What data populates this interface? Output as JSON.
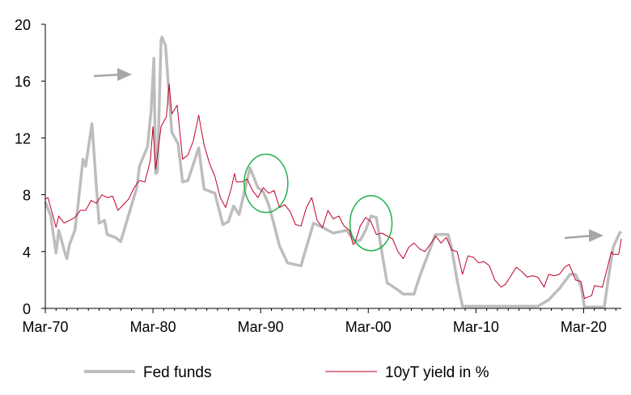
{
  "chart_data": {
    "type": "line",
    "title": "",
    "xlabel": "",
    "ylabel": "",
    "ylim": [
      0,
      20
    ],
    "yticks": [
      "0",
      "4",
      "8",
      "12",
      "16",
      "20"
    ],
    "xlim": [
      "Mar-70",
      "Sep-23"
    ],
    "xticks": [
      "Mar-70",
      "Mar-80",
      "Mar-90",
      "Mar-00",
      "Mar-10",
      "Mar-20"
    ],
    "grid": false,
    "legend_position": "bottom",
    "series": [
      {
        "name": "Fed funds",
        "color": "#bdbdbd",
        "points": [
          [
            "Mar-70",
            7.5
          ],
          [
            "Sep-70",
            6.5
          ],
          [
            "Mar-71",
            3.9
          ],
          [
            "Jun-71",
            5.5
          ],
          [
            "Dec-71",
            4.1
          ],
          [
            "Mar-72",
            3.5
          ],
          [
            "Jun-72",
            4.5
          ],
          [
            "Dec-72",
            5.5
          ],
          [
            "Mar-73",
            7.0
          ],
          [
            "Sep-73",
            10.5
          ],
          [
            "Dec-73",
            10.0
          ],
          [
            "Jul-74",
            13.0
          ],
          [
            "Dec-74",
            8.5
          ],
          [
            "Mar-75",
            6.0
          ],
          [
            "Sep-75",
            6.2
          ],
          [
            "Dec-75",
            5.2
          ],
          [
            "Sep-76",
            5.0
          ],
          [
            "Mar-77",
            4.7
          ],
          [
            "Dec-77",
            6.6
          ],
          [
            "Sep-78",
            8.5
          ],
          [
            "Dec-78",
            10.0
          ],
          [
            "Sep-79",
            11.4
          ],
          [
            "Jan-80",
            14.0
          ],
          [
            "Apr-80",
            17.6
          ],
          [
            "Jun-80",
            9.5
          ],
          [
            "Aug-80",
            9.6
          ],
          [
            "Dec-80",
            18.9
          ],
          [
            "Jan-81",
            19.1
          ],
          [
            "May-81",
            18.5
          ],
          [
            "Dec-81",
            12.4
          ],
          [
            "Jul-82",
            11.6
          ],
          [
            "Dec-82",
            8.9
          ],
          [
            "Jun-83",
            9.0
          ],
          [
            "Jun-84",
            11.3
          ],
          [
            "Dec-84",
            8.4
          ],
          [
            "Dec-85",
            8.1
          ],
          [
            "Sep-86",
            5.9
          ],
          [
            "Mar-87",
            6.1
          ],
          [
            "Sep-87",
            7.2
          ],
          [
            "Mar-88",
            6.6
          ],
          [
            "Mar-89",
            9.9
          ],
          [
            "Dec-89",
            8.5
          ],
          [
            "Jun-90",
            8.2
          ],
          [
            "Dec-90",
            7.3
          ],
          [
            "Jun-91",
            5.9
          ],
          [
            "Dec-91",
            4.4
          ],
          [
            "Sep-92",
            3.2
          ],
          [
            "Dec-93",
            3.0
          ],
          [
            "Jun-94",
            4.3
          ],
          [
            "Feb-95",
            6.0
          ],
          [
            "Sep-95",
            5.8
          ],
          [
            "Dec-96",
            5.3
          ],
          [
            "Mar-98",
            5.5
          ],
          [
            "Dec-98",
            4.7
          ],
          [
            "Jun-99",
            4.8
          ],
          [
            "Dec-99",
            5.5
          ],
          [
            "Jun-00",
            6.5
          ],
          [
            "Dec-00",
            6.4
          ],
          [
            "Jun-01",
            4.0
          ],
          [
            "Dec-01",
            1.8
          ],
          [
            "Dec-02",
            1.3
          ],
          [
            "Jun-03",
            1.0
          ],
          [
            "Jun-04",
            1.0
          ],
          [
            "Dec-04",
            2.2
          ],
          [
            "Dec-05",
            4.2
          ],
          [
            "Jun-06",
            5.2
          ],
          [
            "Aug-07",
            5.2
          ],
          [
            "Dec-07",
            4.2
          ],
          [
            "Jun-08",
            2.0
          ],
          [
            "Dec-08",
            0.15
          ],
          [
            "Dec-15",
            0.15
          ],
          [
            "Dec-16",
            0.6
          ],
          [
            "Dec-17",
            1.4
          ],
          [
            "Dec-18",
            2.4
          ],
          [
            "Jun-19",
            2.4
          ],
          [
            "Dec-19",
            1.6
          ],
          [
            "Apr-20",
            0.1
          ],
          [
            "Feb-22",
            0.1
          ],
          [
            "Jul-22",
            2.3
          ],
          [
            "Dec-22",
            4.3
          ],
          [
            "Jul-23",
            5.3
          ],
          [
            "Sep-23",
            5.4
          ]
        ]
      },
      {
        "name": "10yT yield in %",
        "color": "#c00028",
        "points": [
          [
            "Mar-70",
            7.7
          ],
          [
            "Jun-70",
            7.8
          ],
          [
            "Dec-70",
            6.4
          ],
          [
            "Mar-71",
            5.7
          ],
          [
            "Jun-71",
            6.5
          ],
          [
            "Dec-71",
            6.0
          ],
          [
            "Jun-72",
            6.2
          ],
          [
            "Dec-72",
            6.4
          ],
          [
            "Jun-73",
            6.9
          ],
          [
            "Dec-73",
            6.9
          ],
          [
            "Jun-74",
            7.6
          ],
          [
            "Dec-74",
            7.4
          ],
          [
            "Jun-75",
            8.0
          ],
          [
            "Dec-75",
            7.8
          ],
          [
            "Jun-76",
            7.9
          ],
          [
            "Dec-76",
            6.9
          ],
          [
            "Jun-77",
            7.3
          ],
          [
            "Dec-77",
            7.7
          ],
          [
            "Jun-78",
            8.5
          ],
          [
            "Dec-78",
            9.0
          ],
          [
            "Jun-79",
            8.9
          ],
          [
            "Dec-79",
            10.4
          ],
          [
            "Mar-80",
            12.8
          ],
          [
            "Jun-80",
            9.8
          ],
          [
            "Dec-80",
            12.8
          ],
          [
            "Jun-81",
            13.5
          ],
          [
            "Sep-81",
            15.8
          ],
          [
            "Dec-81",
            13.7
          ],
          [
            "Jun-82",
            14.3
          ],
          [
            "Dec-82",
            10.5
          ],
          [
            "Jun-83",
            10.8
          ],
          [
            "Dec-83",
            11.8
          ],
          [
            "Jun-84",
            13.6
          ],
          [
            "Dec-84",
            11.5
          ],
          [
            "Jun-85",
            10.2
          ],
          [
            "Dec-85",
            9.3
          ],
          [
            "Jun-86",
            7.8
          ],
          [
            "Dec-86",
            7.1
          ],
          [
            "Jun-87",
            8.4
          ],
          [
            "Oct-87",
            9.5
          ],
          [
            "Dec-87",
            8.9
          ],
          [
            "Jun-88",
            8.9
          ],
          [
            "Dec-88",
            9.1
          ],
          [
            "Jun-89",
            8.3
          ],
          [
            "Dec-89",
            7.8
          ],
          [
            "Jun-90",
            8.5
          ],
          [
            "Dec-90",
            8.1
          ],
          [
            "Jun-91",
            8.3
          ],
          [
            "Dec-91",
            7.1
          ],
          [
            "Jun-92",
            7.3
          ],
          [
            "Dec-92",
            6.8
          ],
          [
            "Jun-93",
            5.9
          ],
          [
            "Dec-93",
            5.8
          ],
          [
            "Jun-94",
            7.1
          ],
          [
            "Dec-94",
            7.8
          ],
          [
            "Jun-95",
            6.2
          ],
          [
            "Dec-95",
            5.7
          ],
          [
            "Jun-96",
            6.9
          ],
          [
            "Dec-96",
            6.3
          ],
          [
            "Jun-97",
            6.5
          ],
          [
            "Dec-97",
            5.8
          ],
          [
            "Jun-98",
            5.5
          ],
          [
            "Oct-98",
            4.5
          ],
          [
            "Dec-98",
            4.6
          ],
          [
            "Jun-99",
            5.8
          ],
          [
            "Dec-99",
            6.4
          ],
          [
            "Jun-00",
            6.1
          ],
          [
            "Dec-00",
            5.2
          ],
          [
            "Jun-01",
            5.3
          ],
          [
            "Dec-01",
            5.1
          ],
          [
            "Jun-02",
            4.9
          ],
          [
            "Dec-02",
            4.0
          ],
          [
            "Jun-03",
            3.5
          ],
          [
            "Dec-03",
            4.3
          ],
          [
            "Jun-04",
            4.6
          ],
          [
            "Dec-04",
            4.2
          ],
          [
            "Jun-05",
            4.0
          ],
          [
            "Dec-05",
            4.5
          ],
          [
            "Jun-06",
            5.1
          ],
          [
            "Dec-06",
            4.6
          ],
          [
            "Jun-07",
            5.0
          ],
          [
            "Dec-07",
            4.1
          ],
          [
            "Jun-08",
            4.0
          ],
          [
            "Dec-08",
            2.4
          ],
          [
            "Jun-09",
            3.7
          ],
          [
            "Dec-09",
            3.6
          ],
          [
            "Jun-10",
            3.2
          ],
          [
            "Dec-10",
            3.3
          ],
          [
            "Jun-11",
            3.0
          ],
          [
            "Dec-11",
            2.0
          ],
          [
            "Jul-12",
            1.5
          ],
          [
            "Dec-12",
            1.7
          ],
          [
            "Jun-13",
            2.3
          ],
          [
            "Dec-13",
            2.9
          ],
          [
            "Jun-14",
            2.6
          ],
          [
            "Dec-14",
            2.2
          ],
          [
            "Jun-15",
            2.3
          ],
          [
            "Dec-15",
            2.2
          ],
          [
            "Jul-16",
            1.5
          ],
          [
            "Dec-16",
            2.4
          ],
          [
            "Jun-17",
            2.3
          ],
          [
            "Dec-17",
            2.4
          ],
          [
            "Jun-18",
            2.9
          ],
          [
            "Nov-18",
            3.1
          ],
          [
            "Jun-19",
            2.0
          ],
          [
            "Dec-19",
            1.9
          ],
          [
            "Apr-20",
            0.7
          ],
          [
            "Dec-20",
            0.9
          ],
          [
            "Mar-21",
            1.6
          ],
          [
            "Dec-21",
            1.5
          ],
          [
            "Jun-22",
            3.0
          ],
          [
            "Oct-22",
            4.0
          ],
          [
            "Dec-22",
            3.8
          ],
          [
            "Jun-23",
            3.8
          ],
          [
            "Sep-23",
            4.9
          ]
        ]
      }
    ],
    "annotations": [
      {
        "type": "arrow",
        "near": "Mar-80 peak"
      },
      {
        "type": "arrow",
        "near": "Mar-20 rise"
      },
      {
        "type": "circle",
        "color": "#22b14c",
        "around": "Mar-90"
      },
      {
        "type": "circle",
        "color": "#22b14c",
        "around": "Mar-00"
      }
    ]
  }
}
